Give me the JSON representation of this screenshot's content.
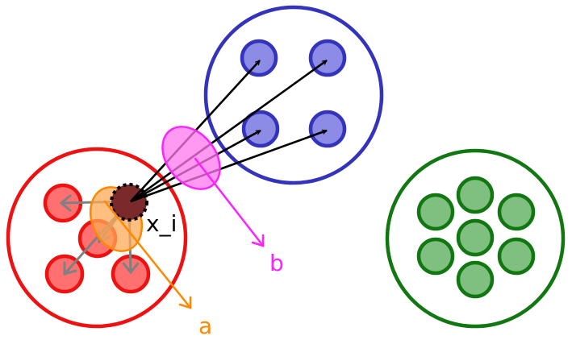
{
  "labels": {
    "xi": "x_i",
    "a": "a",
    "b": "b"
  },
  "colors": {
    "red_cluster": "#ee1111",
    "red_fill": "#ff7070",
    "blue_cluster": "#3333bb",
    "blue_fill": "#8c8ce6",
    "green_cluster": "#117711",
    "green_fill": "#7fbf7f",
    "xi_fill": "#7a2a2a",
    "orange": "#ff8800",
    "orange_fill": "#ffaa55",
    "magenta": "#ff22ff",
    "magenta_fill": "#ff77ee",
    "black_arrow": "#000000",
    "gray_arrow": "#808080"
  }
}
